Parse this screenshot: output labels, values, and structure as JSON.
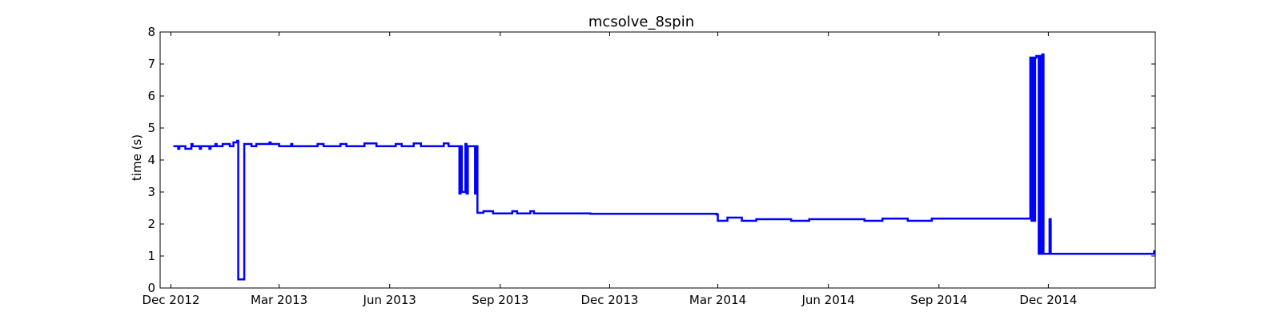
{
  "chart_data": {
    "type": "line",
    "title": "mcsolve_8spin",
    "xlabel": "",
    "ylabel": "time (s)",
    "xlim": [
      "2012-11-22",
      "2015-02-28"
    ],
    "ylim": [
      0,
      8
    ],
    "yticks": [
      0,
      1,
      2,
      3,
      4,
      5,
      6,
      7,
      8
    ],
    "xticks": [
      {
        "date": "2012-12-01",
        "label": "Dec 2012"
      },
      {
        "date": "2013-03-01",
        "label": "Mar 2013"
      },
      {
        "date": "2013-06-01",
        "label": "Jun 2013"
      },
      {
        "date": "2013-09-01",
        "label": "Sep 2013"
      },
      {
        "date": "2013-12-01",
        "label": "Dec 2013"
      },
      {
        "date": "2014-03-01",
        "label": "Mar 2014"
      },
      {
        "date": "2014-06-01",
        "label": "Jun 2014"
      },
      {
        "date": "2014-09-01",
        "label": "Sep 2014"
      },
      {
        "date": "2014-12-01",
        "label": "Dec 2014"
      }
    ],
    "grid": false,
    "legend": "none",
    "series": [
      {
        "color": "#0000ff",
        "step": true,
        "points": [
          [
            "2012-12-03",
            4.43
          ],
          [
            "2012-12-06",
            4.43
          ],
          [
            "2012-12-07",
            4.35
          ],
          [
            "2012-12-08",
            4.43
          ],
          [
            "2012-12-12",
            4.43
          ],
          [
            "2012-12-13",
            4.35
          ],
          [
            "2012-12-17",
            4.35
          ],
          [
            "2012-12-18",
            4.5
          ],
          [
            "2012-12-19",
            4.43
          ],
          [
            "2012-12-24",
            4.43
          ],
          [
            "2012-12-25",
            4.35
          ],
          [
            "2012-12-26",
            4.43
          ],
          [
            "2013-01-01",
            4.43
          ],
          [
            "2013-01-02",
            4.35
          ],
          [
            "2013-01-03",
            4.43
          ],
          [
            "2013-01-06",
            4.43
          ],
          [
            "2013-01-07",
            4.5
          ],
          [
            "2013-01-08",
            4.43
          ],
          [
            "2013-01-12",
            4.43
          ],
          [
            "2013-01-13",
            4.5
          ],
          [
            "2013-01-18",
            4.5
          ],
          [
            "2013-01-19",
            4.43
          ],
          [
            "2013-01-21",
            4.43
          ],
          [
            "2013-01-22",
            4.55
          ],
          [
            "2013-01-25",
            4.6
          ],
          [
            "2013-01-26",
            0.27
          ],
          [
            "2013-01-30",
            0.27
          ],
          [
            "2013-01-31",
            4.5
          ],
          [
            "2013-02-05",
            4.5
          ],
          [
            "2013-02-06",
            4.43
          ],
          [
            "2013-02-10",
            4.5
          ],
          [
            "2013-02-20",
            4.5
          ],
          [
            "2013-02-21",
            4.55
          ],
          [
            "2013-02-22",
            4.5
          ],
          [
            "2013-02-28",
            4.5
          ],
          [
            "2013-03-01",
            4.43
          ],
          [
            "2013-03-10",
            4.43
          ],
          [
            "2013-03-11",
            4.5
          ],
          [
            "2013-03-12",
            4.43
          ],
          [
            "2013-04-01",
            4.43
          ],
          [
            "2013-04-02",
            4.5
          ],
          [
            "2013-04-06",
            4.5
          ],
          [
            "2013-04-07",
            4.43
          ],
          [
            "2013-04-20",
            4.43
          ],
          [
            "2013-04-21",
            4.5
          ],
          [
            "2013-04-25",
            4.5
          ],
          [
            "2013-04-26",
            4.43
          ],
          [
            "2013-05-10",
            4.43
          ],
          [
            "2013-05-11",
            4.52
          ],
          [
            "2013-05-20",
            4.52
          ],
          [
            "2013-05-21",
            4.43
          ],
          [
            "2013-06-05",
            4.43
          ],
          [
            "2013-06-06",
            4.5
          ],
          [
            "2013-06-10",
            4.5
          ],
          [
            "2013-06-11",
            4.43
          ],
          [
            "2013-06-20",
            4.43
          ],
          [
            "2013-06-21",
            4.52
          ],
          [
            "2013-06-26",
            4.52
          ],
          [
            "2013-06-27",
            4.43
          ],
          [
            "2013-07-15",
            4.43
          ],
          [
            "2013-07-16",
            4.52
          ],
          [
            "2013-07-19",
            4.52
          ],
          [
            "2013-07-20",
            4.43
          ],
          [
            "2013-07-28",
            4.43
          ],
          [
            "2013-07-29",
            2.95
          ],
          [
            "2013-07-30",
            4.43
          ],
          [
            "2013-07-31",
            3.0
          ],
          [
            "2013-08-02",
            3.0
          ],
          [
            "2013-08-03",
            4.5
          ],
          [
            "2013-08-04",
            2.95
          ],
          [
            "2013-08-05",
            4.43
          ],
          [
            "2013-08-10",
            4.43
          ],
          [
            "2013-08-11",
            2.95
          ],
          [
            "2013-08-12",
            4.43
          ],
          [
            "2013-08-13",
            2.35
          ],
          [
            "2013-08-17",
            2.35
          ],
          [
            "2013-08-18",
            2.4
          ],
          [
            "2013-08-25",
            2.4
          ],
          [
            "2013-08-26",
            2.33
          ],
          [
            "2013-09-10",
            2.33
          ],
          [
            "2013-09-11",
            2.4
          ],
          [
            "2013-09-14",
            2.4
          ],
          [
            "2013-09-15",
            2.33
          ],
          [
            "2013-09-25",
            2.33
          ],
          [
            "2013-09-26",
            2.4
          ],
          [
            "2013-09-28",
            2.4
          ],
          [
            "2013-09-29",
            2.33
          ],
          [
            "2013-10-15",
            2.33
          ],
          [
            "2013-11-15",
            2.32
          ],
          [
            "2013-12-31",
            2.32
          ],
          [
            "2014-02-28",
            2.3
          ],
          [
            "2014-03-01",
            2.1
          ],
          [
            "2014-03-08",
            2.1
          ],
          [
            "2014-03-09",
            2.2
          ],
          [
            "2014-03-20",
            2.2
          ],
          [
            "2014-03-21",
            2.1
          ],
          [
            "2014-04-01",
            2.1
          ],
          [
            "2014-04-02",
            2.15
          ],
          [
            "2014-04-30",
            2.15
          ],
          [
            "2014-05-01",
            2.1
          ],
          [
            "2014-05-15",
            2.1
          ],
          [
            "2014-05-16",
            2.15
          ],
          [
            "2014-06-30",
            2.15
          ],
          [
            "2014-07-01",
            2.1
          ],
          [
            "2014-07-15",
            2.1
          ],
          [
            "2014-07-16",
            2.17
          ],
          [
            "2014-08-05",
            2.17
          ],
          [
            "2014-08-06",
            2.1
          ],
          [
            "2014-08-25",
            2.1
          ],
          [
            "2014-08-26",
            2.17
          ],
          [
            "2014-10-20",
            2.17
          ],
          [
            "2014-11-15",
            2.17
          ],
          [
            "2014-11-16",
            7.2
          ],
          [
            "2014-11-17",
            2.1
          ],
          [
            "2014-11-18",
            7.2
          ],
          [
            "2014-11-19",
            2.1
          ],
          [
            "2014-11-20",
            7.2
          ],
          [
            "2014-11-21",
            7.25
          ],
          [
            "2014-11-23",
            1.07
          ],
          [
            "2014-11-24",
            7.25
          ],
          [
            "2014-11-25",
            1.07
          ],
          [
            "2014-11-26",
            7.3
          ],
          [
            "2014-11-27",
            1.07
          ],
          [
            "2014-12-01",
            1.07
          ],
          [
            "2014-12-02",
            2.15
          ],
          [
            "2014-12-03",
            1.07
          ],
          [
            "2015-02-26",
            1.07
          ],
          [
            "2015-02-27",
            1.15
          ],
          [
            "2015-02-28",
            1.15
          ]
        ]
      }
    ]
  }
}
